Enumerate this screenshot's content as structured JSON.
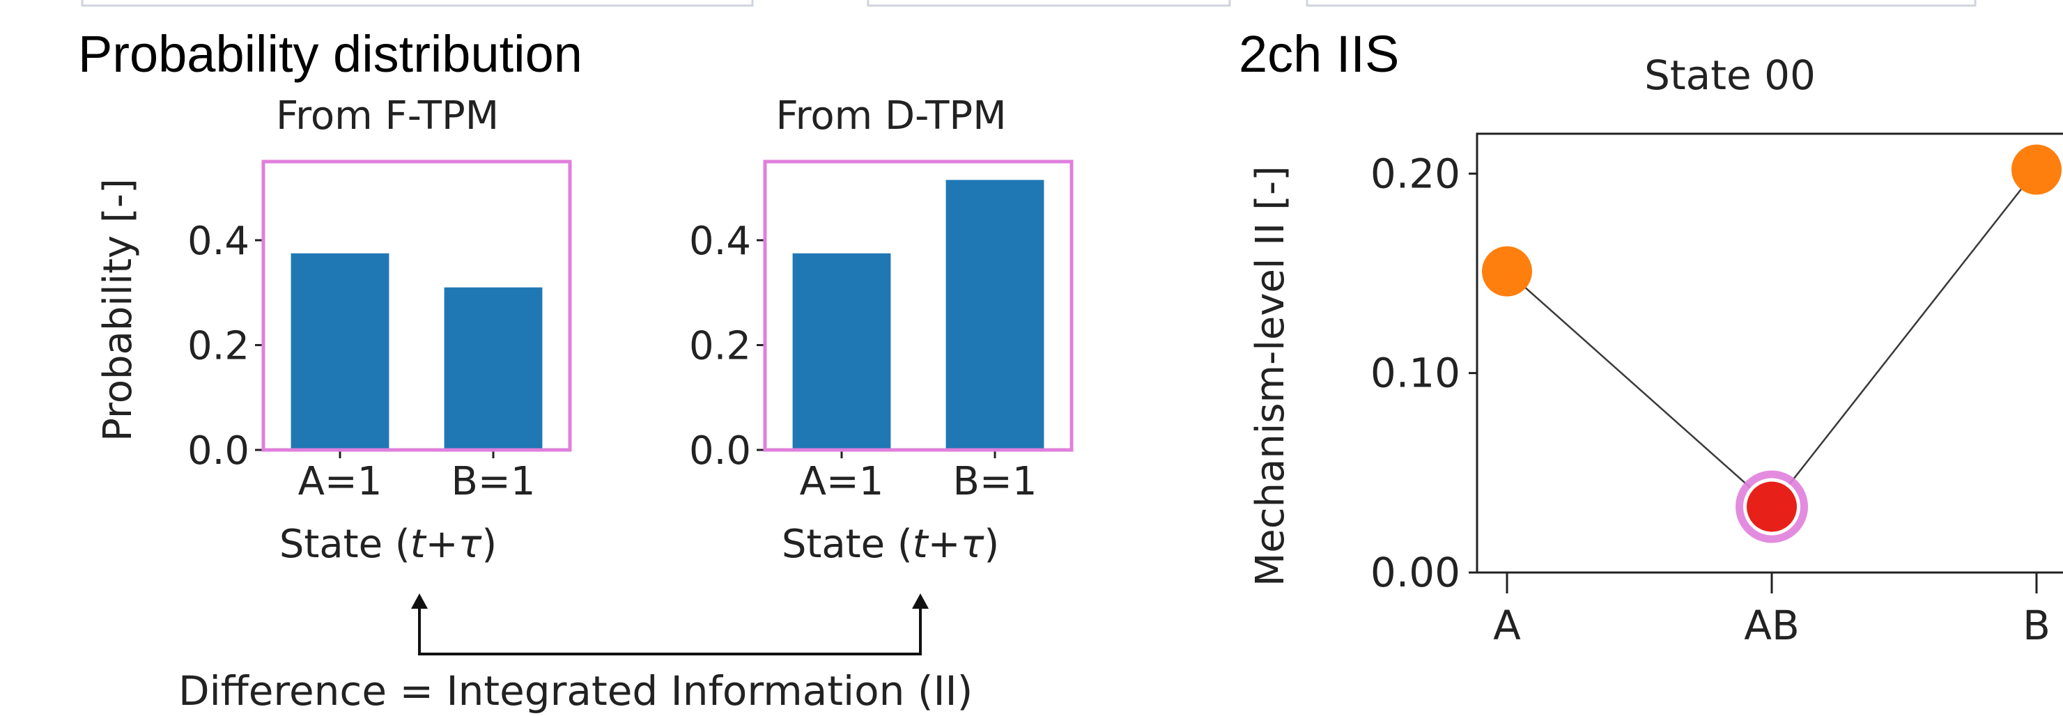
{
  "left_panel": {
    "title": "Probability distribution",
    "caption": "Difference = Integrated Information (II)"
  },
  "right_panel": {
    "title": "2ch IIS"
  },
  "chart_data": [
    {
      "type": "bar",
      "title": "From F-TPM",
      "xlabel": "State (t+τ)",
      "ylabel": "Probability [-]",
      "categories": [
        "A=1",
        "B=1"
      ],
      "values": [
        0.375,
        0.31
      ],
      "ylim": [
        0,
        0.55
      ],
      "yticks": [
        "0.0",
        "0.2",
        "0.4"
      ],
      "bar_color": "#1f77b4",
      "frame_color": "#e07fdc"
    },
    {
      "type": "bar",
      "title": "From D-TPM",
      "xlabel": "State (t+τ)",
      "ylabel": "",
      "categories": [
        "A=1",
        "B=1"
      ],
      "values": [
        0.375,
        0.515
      ],
      "ylim": [
        0,
        0.55
      ],
      "yticks": [
        "0.0",
        "0.2",
        "0.4"
      ],
      "bar_color": "#1f77b4",
      "frame_color": "#e07fdc"
    },
    {
      "type": "line",
      "title": "State 00",
      "xlabel": "",
      "ylabel": "Mechanism-level II [-]",
      "categories": [
        "A",
        "AB",
        "B"
      ],
      "values": [
        0.151,
        0.033,
        0.202
      ],
      "ylim": [
        0,
        0.22
      ],
      "yticks": [
        "0.00",
        "0.10",
        "0.20"
      ],
      "point_colors": [
        "#ff7f0e",
        "#e8201a",
        "#ff7f0e"
      ],
      "highlight_category": "AB",
      "highlight_color": "#e07fdc",
      "line_color": "#3a3a3a"
    }
  ]
}
